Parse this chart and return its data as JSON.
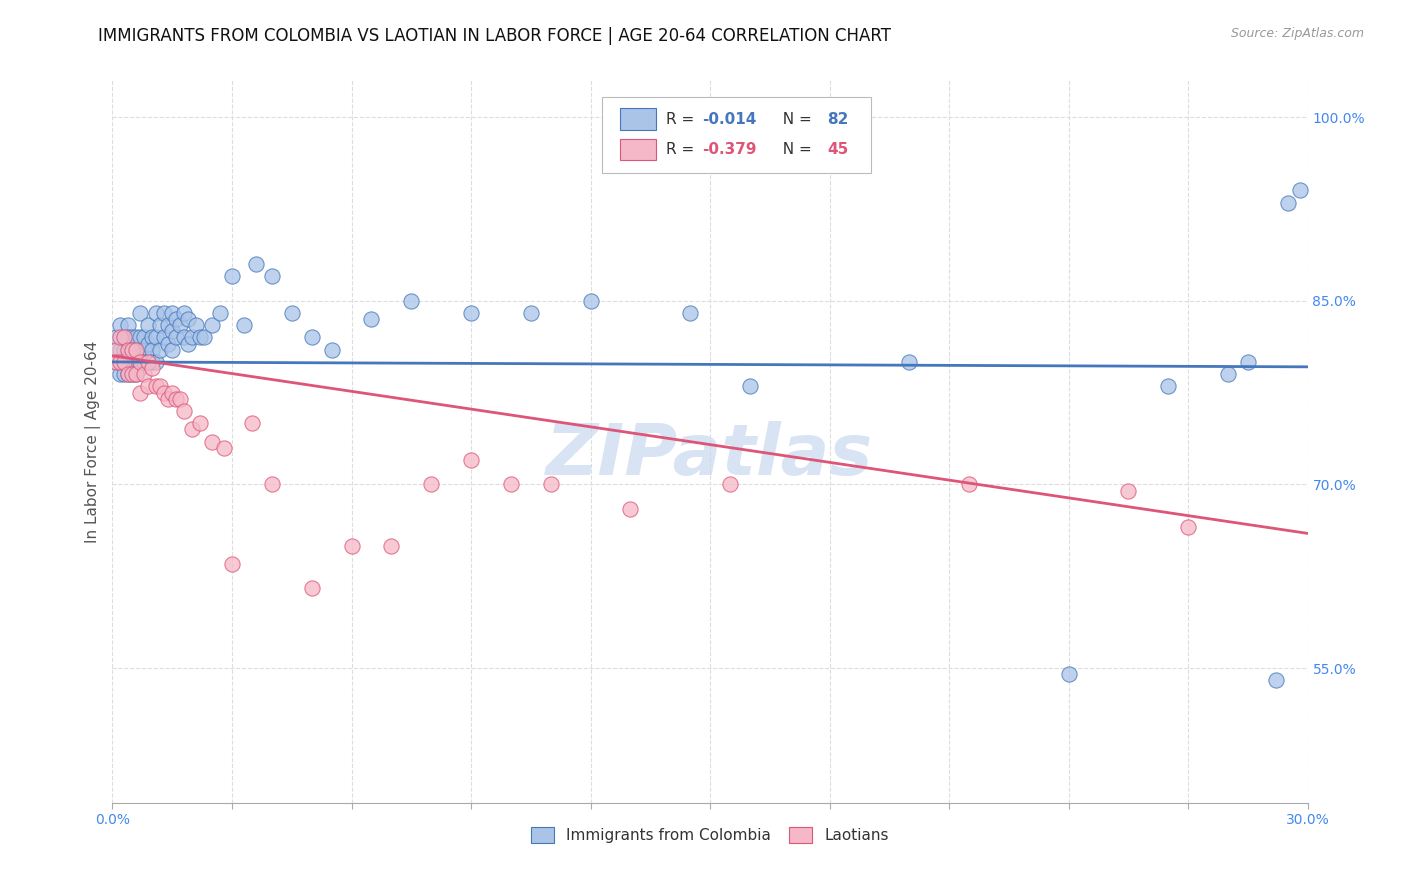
{
  "title": "IMMIGRANTS FROM COLOMBIA VS LAOTIAN IN LABOR FORCE | AGE 20-64 CORRELATION CHART",
  "source": "Source: ZipAtlas.com",
  "ylabel": "In Labor Force | Age 20-64",
  "xlim": [
    0.0,
    0.3
  ],
  "ylim": [
    0.44,
    1.03
  ],
  "xticks": [
    0.0,
    0.03,
    0.06,
    0.09,
    0.12,
    0.15,
    0.18,
    0.21,
    0.24,
    0.27,
    0.3
  ],
  "ytick_right_labels": [
    "100.0%",
    "85.0%",
    "70.0%",
    "55.0%"
  ],
  "ytick_right_values": [
    1.0,
    0.85,
    0.7,
    0.55
  ],
  "grid_color": "#dddddd",
  "colombia_color": "#aac4e8",
  "laotian_color": "#f5b8c8",
  "colombia_line_color": "#4477bb",
  "laotian_line_color": "#dd5577",
  "legend_r_colombia": "-0.014",
  "legend_n_colombia": "82",
  "legend_r_laotian": "-0.379",
  "legend_n_laotian": "45",
  "watermark": "ZIPatlas",
  "colombia_scatter_x": [
    0.001,
    0.001,
    0.002,
    0.002,
    0.002,
    0.003,
    0.003,
    0.003,
    0.003,
    0.004,
    0.004,
    0.004,
    0.004,
    0.004,
    0.005,
    0.005,
    0.005,
    0.005,
    0.006,
    0.006,
    0.006,
    0.006,
    0.007,
    0.007,
    0.007,
    0.007,
    0.008,
    0.008,
    0.008,
    0.009,
    0.009,
    0.009,
    0.01,
    0.01,
    0.01,
    0.011,
    0.011,
    0.011,
    0.012,
    0.012,
    0.013,
    0.013,
    0.014,
    0.014,
    0.015,
    0.015,
    0.015,
    0.016,
    0.016,
    0.017,
    0.018,
    0.018,
    0.019,
    0.019,
    0.02,
    0.021,
    0.022,
    0.023,
    0.025,
    0.027,
    0.03,
    0.033,
    0.036,
    0.04,
    0.045,
    0.05,
    0.055,
    0.065,
    0.075,
    0.09,
    0.105,
    0.12,
    0.145,
    0.16,
    0.2,
    0.24,
    0.265,
    0.28,
    0.285,
    0.292,
    0.295,
    0.298
  ],
  "colombia_scatter_y": [
    0.82,
    0.8,
    0.83,
    0.81,
    0.79,
    0.82,
    0.81,
    0.8,
    0.79,
    0.83,
    0.82,
    0.81,
    0.8,
    0.79,
    0.82,
    0.81,
    0.8,
    0.79,
    0.82,
    0.81,
    0.8,
    0.79,
    0.84,
    0.82,
    0.81,
    0.795,
    0.82,
    0.81,
    0.8,
    0.83,
    0.815,
    0.8,
    0.82,
    0.81,
    0.8,
    0.84,
    0.82,
    0.8,
    0.83,
    0.81,
    0.84,
    0.82,
    0.83,
    0.815,
    0.84,
    0.825,
    0.81,
    0.835,
    0.82,
    0.83,
    0.84,
    0.82,
    0.835,
    0.815,
    0.82,
    0.83,
    0.82,
    0.82,
    0.83,
    0.84,
    0.87,
    0.83,
    0.88,
    0.87,
    0.84,
    0.82,
    0.81,
    0.835,
    0.85,
    0.84,
    0.84,
    0.85,
    0.84,
    0.78,
    0.8,
    0.545,
    0.78,
    0.79,
    0.8,
    0.54,
    0.93,
    0.94
  ],
  "laotian_scatter_x": [
    0.001,
    0.001,
    0.002,
    0.002,
    0.003,
    0.003,
    0.004,
    0.004,
    0.005,
    0.005,
    0.006,
    0.006,
    0.007,
    0.007,
    0.008,
    0.009,
    0.009,
    0.01,
    0.011,
    0.012,
    0.013,
    0.014,
    0.015,
    0.016,
    0.017,
    0.018,
    0.02,
    0.022,
    0.025,
    0.028,
    0.03,
    0.035,
    0.04,
    0.05,
    0.06,
    0.07,
    0.08,
    0.09,
    0.1,
    0.11,
    0.13,
    0.155,
    0.215,
    0.255,
    0.27
  ],
  "laotian_scatter_y": [
    0.81,
    0.8,
    0.82,
    0.8,
    0.82,
    0.8,
    0.81,
    0.79,
    0.81,
    0.79,
    0.81,
    0.79,
    0.8,
    0.775,
    0.79,
    0.8,
    0.78,
    0.795,
    0.78,
    0.78,
    0.775,
    0.77,
    0.775,
    0.77,
    0.77,
    0.76,
    0.745,
    0.75,
    0.735,
    0.73,
    0.635,
    0.75,
    0.7,
    0.615,
    0.65,
    0.65,
    0.7,
    0.72,
    0.7,
    0.7,
    0.68,
    0.7,
    0.7,
    0.695,
    0.665
  ],
  "colombia_trend_x": [
    0.0,
    0.3
  ],
  "colombia_trend_y": [
    0.8,
    0.796
  ],
  "laotian_trend_x": [
    0.0,
    0.3
  ],
  "laotian_trend_y": [
    0.805,
    0.66
  ],
  "title_fontsize": 12,
  "axis_label_fontsize": 11,
  "tick_fontsize": 10,
  "legend_fontsize": 11,
  "watermark_fontsize": 52,
  "watermark_color": "#c8d8f0",
  "right_tick_color": "#4488ee",
  "bottom_tick_color": "#4488ee"
}
